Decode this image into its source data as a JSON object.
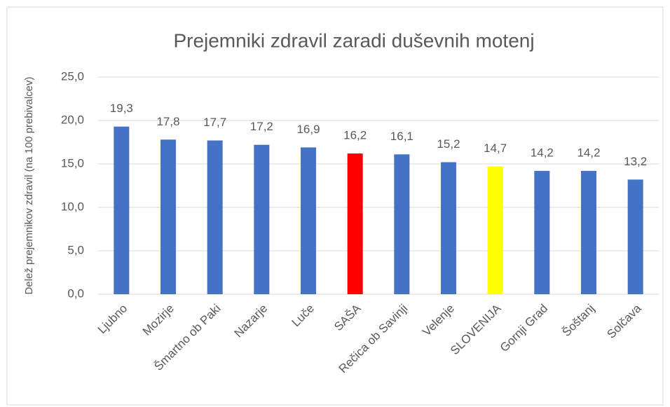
{
  "chart_data": {
    "type": "bar",
    "title": "Prejemniki zdravil zaradi duševnih motenj",
    "y_label": "Delež prejemnikov zdravil (na 100 prebivalcev)",
    "categories": [
      "Ljubno",
      "Mozirje",
      "Šmartno ob Paki",
      "Nazarje",
      "Luče",
      "SAŠA",
      "Rečica ob Savinji",
      "Velenje",
      "SLOVENIJA",
      "Gornji Grad",
      "Šoštanj",
      "Solčava"
    ],
    "values": [
      19.3,
      17.8,
      17.7,
      17.2,
      16.9,
      16.2,
      16.1,
      15.2,
      14.7,
      14.2,
      14.2,
      13.2
    ],
    "value_labels": [
      "19,3",
      "17,8",
      "17,7",
      "17,2",
      "16,9",
      "16,2",
      "16,1",
      "15,2",
      "14,7",
      "14,2",
      "14,2",
      "13,2"
    ],
    "colors": [
      "#4472c4",
      "#4472c4",
      "#4472c4",
      "#4472c4",
      "#4472c4",
      "#ff0000",
      "#4472c4",
      "#4472c4",
      "#ffff00",
      "#4472c4",
      "#4472c4",
      "#4472c4"
    ],
    "ylim": [
      0,
      25
    ],
    "yticks": [
      {
        "value": 0,
        "label": "0,0"
      },
      {
        "value": 5,
        "label": "5,0"
      },
      {
        "value": 10,
        "label": "10,0"
      },
      {
        "value": 15,
        "label": "15,0"
      },
      {
        "value": 20,
        "label": "20,0"
      },
      {
        "value": 25,
        "label": "25,0"
      }
    ],
    "grid": true
  }
}
